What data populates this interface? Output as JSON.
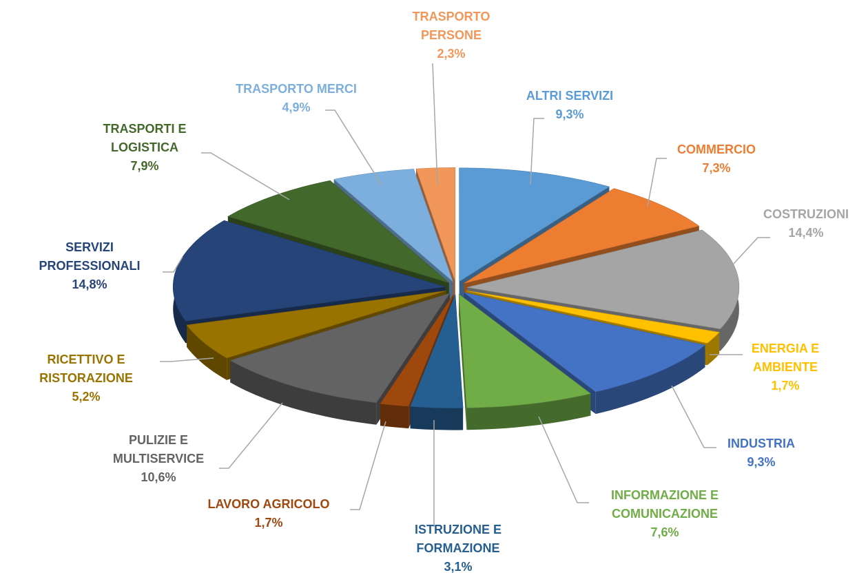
{
  "chart_data": {
    "type": "pie",
    "categories": [
      "ALTRI SERVIZI",
      "COMMERCIO",
      "COSTRUZIONI",
      "ENERGIA E\nAMBIENTE",
      "INDUSTRIA",
      "INFORMAZIONE E\nCOMUNICAZIONE",
      "ISTRUZIONE E\nFORMAZIONE",
      "LAVORO AGRICOLO",
      "PULIZIE E\nMULTISERVICE",
      "RICETTIVO E\nRISTORAZIONE",
      "SERVIZI\nPROFESSIONALI",
      "TRASPORTI E\nLOGISTICA",
      "TRASPORTO MERCI",
      "TRASPORTO\nPERSONE"
    ],
    "values": [
      9.3,
      7.3,
      14.4,
      1.7,
      9.3,
      7.6,
      3.1,
      1.7,
      10.6,
      5.2,
      14.8,
      7.9,
      4.9,
      2.3
    ],
    "value_labels": [
      "9,3%",
      "7,3%",
      "14,4%",
      "1,7%",
      "9,3%",
      "7,6%",
      "3,1%",
      "1,7%",
      "10,6%",
      "5,2%",
      "14,8%",
      "7,9%",
      "4,9%",
      "2,3%"
    ],
    "colors": [
      "#5b9bd5",
      "#ed7d31",
      "#a5a5a5",
      "#ffc000",
      "#4472c4",
      "#70ad47",
      "#255e91",
      "#9e480e",
      "#636363",
      "#997300",
      "#264478",
      "#43682b",
      "#7cafdd",
      "#f1975a"
    ]
  }
}
